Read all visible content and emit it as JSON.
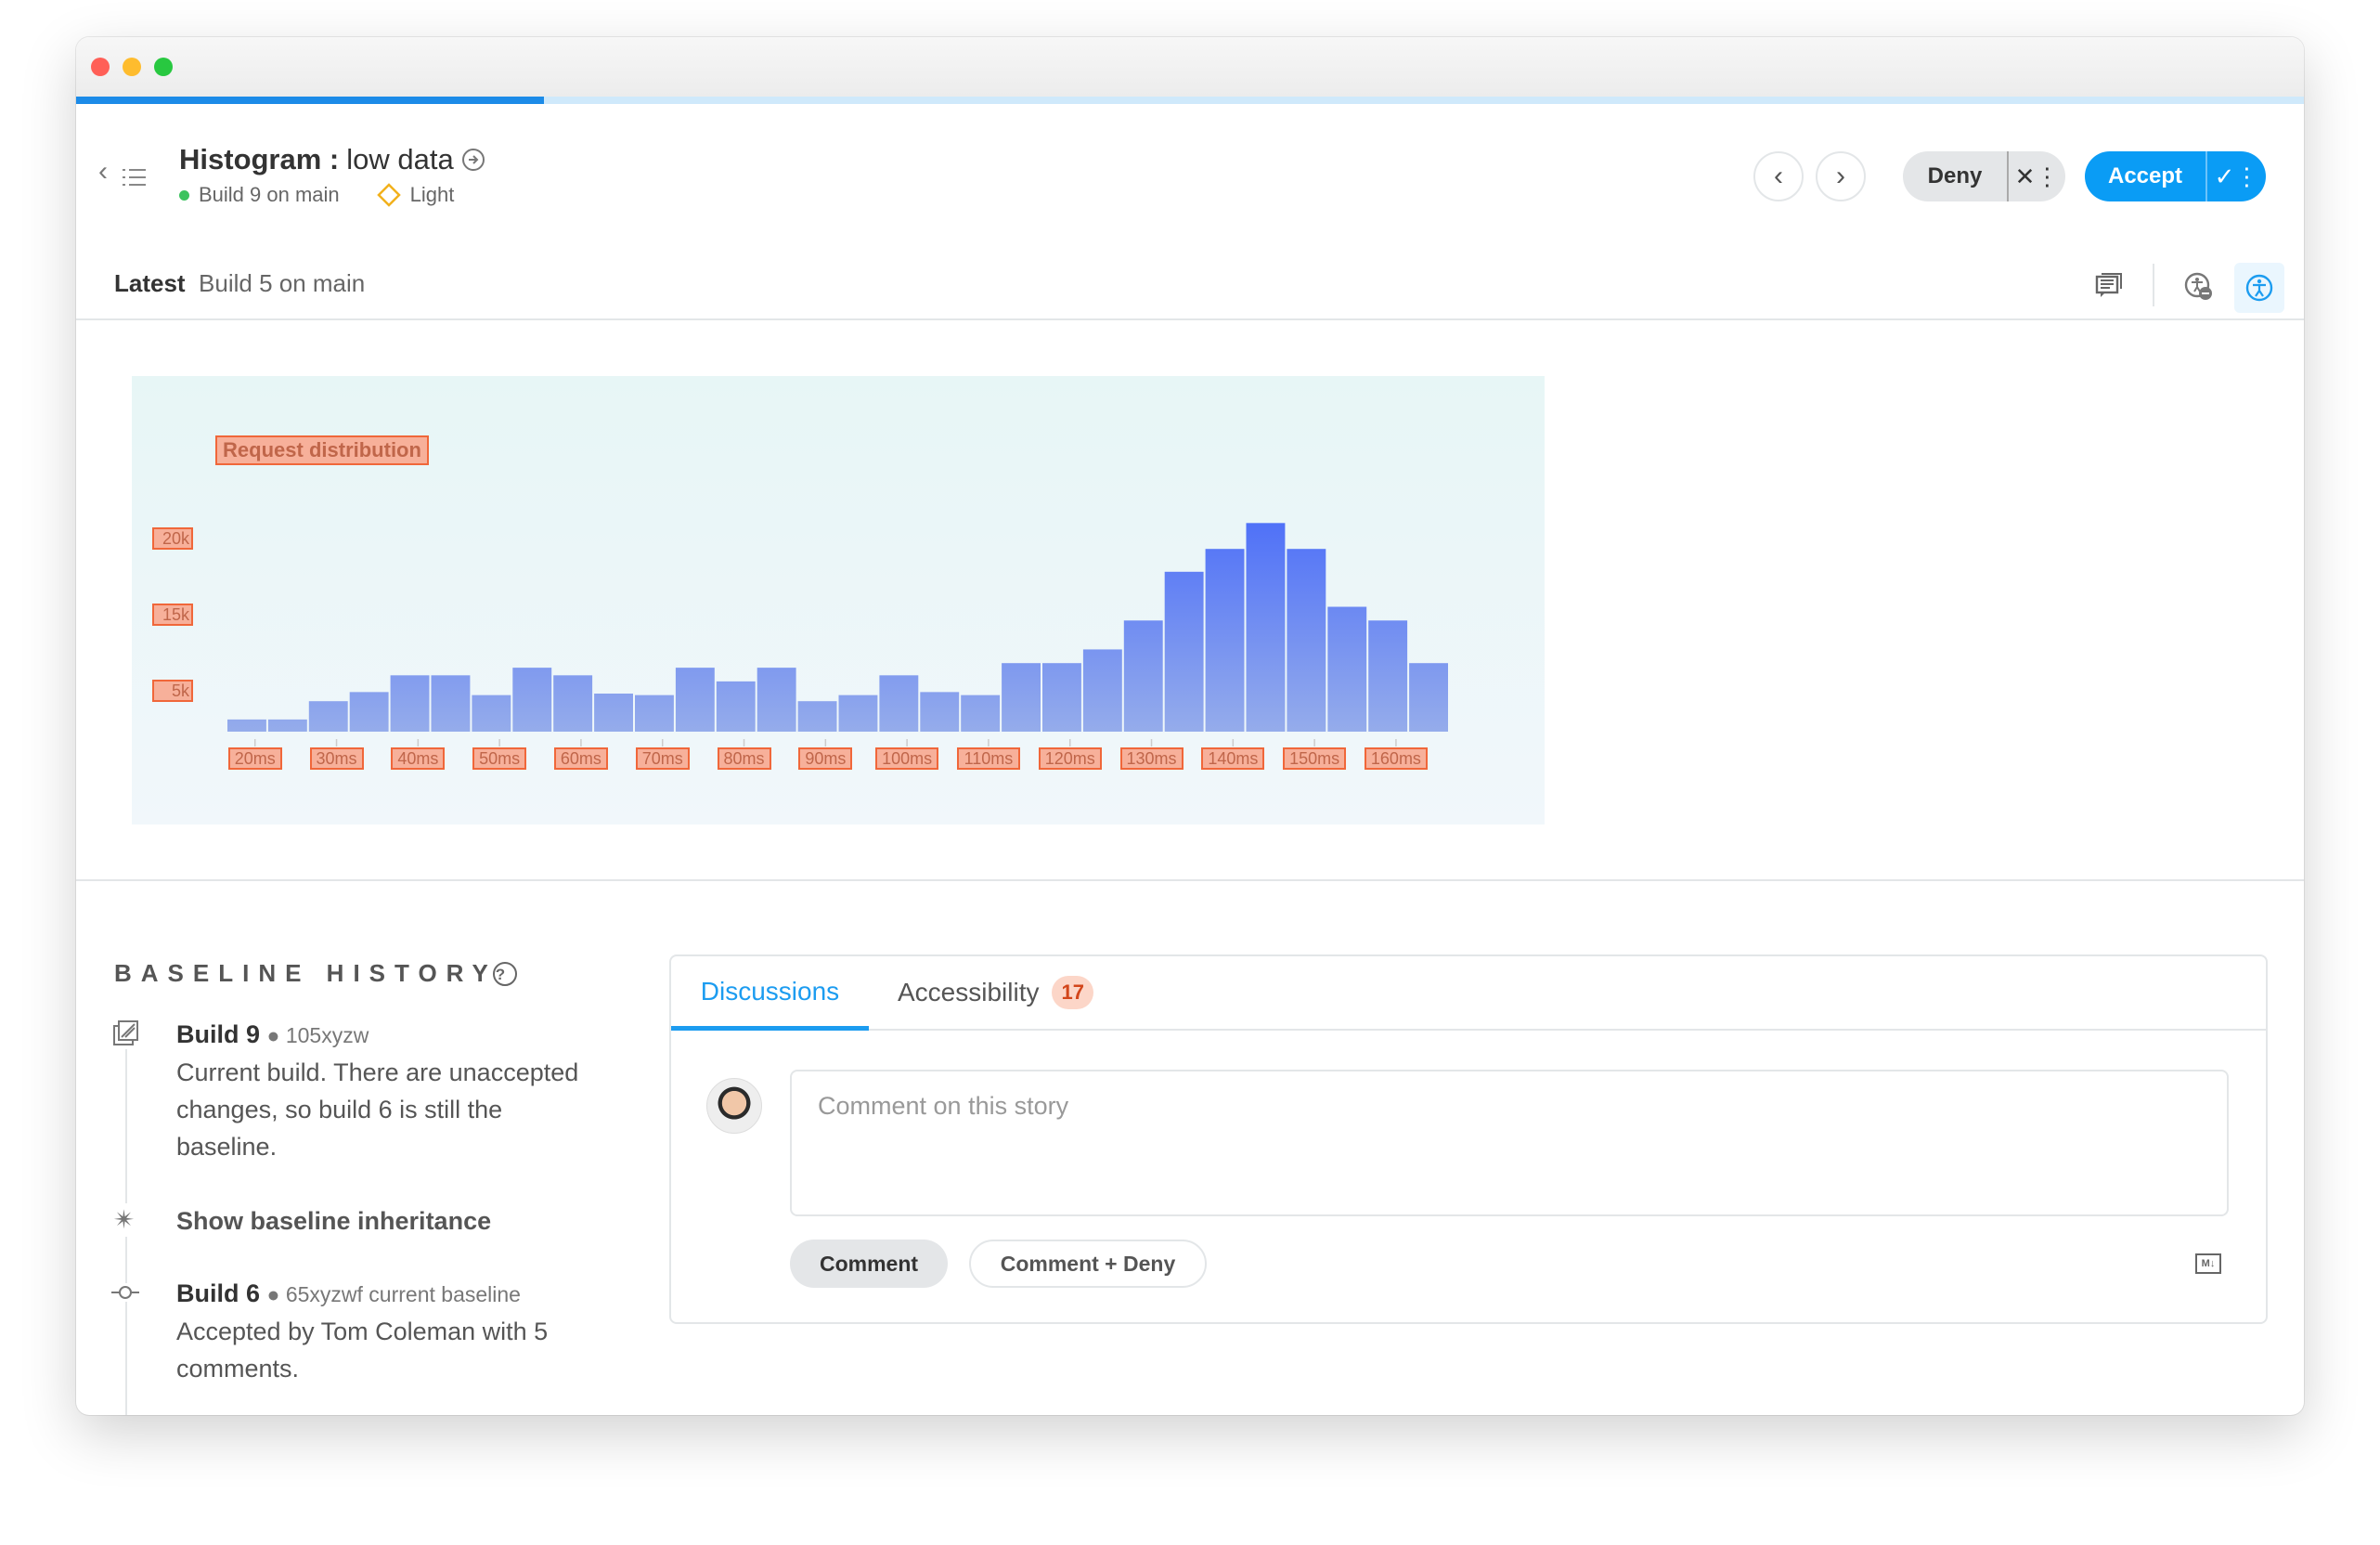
{
  "window": {
    "traffic_lights": [
      "#ff5f57",
      "#febc2e",
      "#28c840"
    ]
  },
  "progress": {
    "percent": 21,
    "color": "#1c8be8"
  },
  "header": {
    "title_bold": "Histogram :",
    "title_rest": "low data",
    "build_status": "Build 9 on main",
    "build_status_color": "#3cc35e",
    "mode": "Light",
    "prev_icon": "chevron-left-icon",
    "next_icon": "chevron-right-icon",
    "deny_label": "Deny",
    "accept_label": "Accept",
    "accent": "#0a9cf5"
  },
  "snapshot_bar": {
    "label": "Latest",
    "build": "Build 5 on main"
  },
  "chart_data": {
    "type": "bar",
    "title": "Request distribution",
    "y_tick_labels": [
      "5k",
      "15k",
      "20k"
    ],
    "x_tick_labels": [
      "20ms",
      "30ms",
      "40ms",
      "50ms",
      "60ms",
      "70ms",
      "80ms",
      "90ms",
      "100ms",
      "110ms",
      "120ms",
      "130ms",
      "140ms",
      "150ms",
      "160ms"
    ],
    "values": [
      8100,
      8100,
      9300,
      9900,
      11000,
      11000,
      9700,
      11500,
      11000,
      9800,
      9700,
      11500,
      10600,
      11500,
      9300,
      9700,
      11000,
      9900,
      9700,
      11800,
      11800,
      12700,
      14600,
      17800,
      19300,
      21000,
      19300,
      15500,
      14600,
      11800
    ],
    "ylim": [
      7300,
      22000
    ],
    "grid": false,
    "bar_color_top": "#4d6ff8",
    "bar_color_bottom": "#95aceb"
  },
  "baseline_history": {
    "heading": "BASELINE HISTORY",
    "items": [
      {
        "build": "Build 9",
        "meta": "105xyzw",
        "text_lines": [
          "Current build. There are unaccepted",
          "changes, so build 6 is still the",
          "baseline."
        ]
      },
      {
        "action": "Show baseline inheritance"
      },
      {
        "build": "Build 6",
        "meta": "65xyzwf current baseline",
        "text_lines": [
          "Accepted by Tom Coleman with 5",
          "comments."
        ]
      }
    ]
  },
  "discussion_panel": {
    "tabs": [
      {
        "label": "Discussions",
        "active": true
      },
      {
        "label": "Accessibility",
        "badge": "17"
      }
    ],
    "comment_placeholder": "Comment on this story",
    "comment_button": "Comment",
    "comment_deny_button": "Comment + Deny",
    "markdown_icon": "markdown-icon"
  }
}
